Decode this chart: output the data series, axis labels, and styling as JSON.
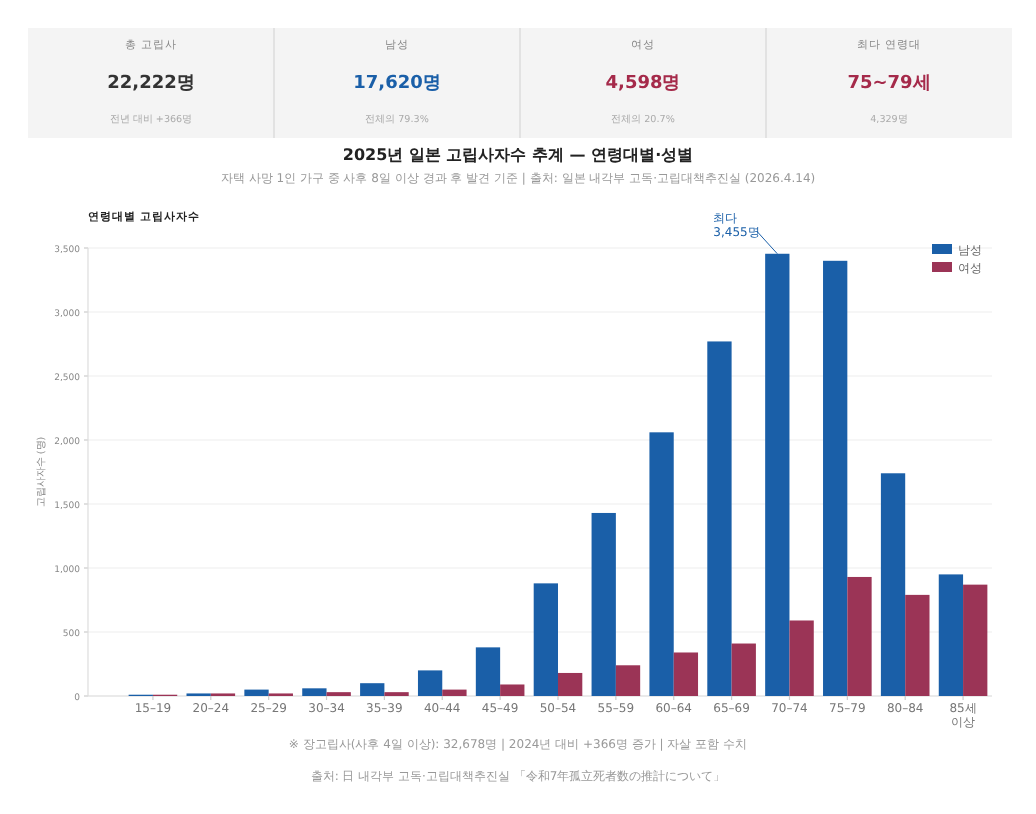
{
  "chart_data": [
    {
      "type": "other",
      "annotations": [
        "총 고립사",
        "22,222명",
        "전년 대비 +366명",
        "남성",
        "17,620명",
        "전체의 79.3%",
        "여성",
        "4,598명",
        "전체의 20.7%",
        "최다 연령대",
        "75~79세",
        "4,329명"
      ],
      "colors": [
        "#333333",
        "#1a5fa8",
        "#a52a4a",
        "#a52a4a"
      ]
    },
    {
      "type": "bar",
      "title": "2025년 일본 고립사자수 추계 — 연령대별·성별",
      "subtitle": "자택 사망 1인 가구 중 사후 8일 이상 경과 후 발견 기준 | 출처: 일본 내각부 고독·고립대책추진실 (2026.4.14)",
      "ylabel": "고립사자수 (명)",
      "categories": [
        "15–19",
        "20–24",
        "25–29",
        "30–34",
        "35–39",
        "40–44",
        "45–49",
        "50–54",
        "55–59",
        "60–64",
        "65–69",
        "70–74",
        "75–79",
        "80–84",
        "85세 이상"
      ],
      "series": [
        {
          "name": "남성",
          "color": "#1a5fa8",
          "values": [
            10,
            20,
            50,
            60,
            100,
            200,
            380,
            880,
            1430,
            2060,
            2770,
            3455,
            3400,
            1740,
            950
          ]
        },
        {
          "name": "여성",
          "color": "#9b3456",
          "values": [
            10,
            20,
            20,
            30,
            30,
            50,
            90,
            180,
            240,
            340,
            410,
            590,
            930,
            790,
            870
          ]
        }
      ],
      "ylim": [
        0,
        3500
      ],
      "yticks": [
        0,
        {
          "value": 500,
          "label": "500"
        },
        {
          "value": 1000,
          "label": "1,000"
        },
        {
          "value": 1500,
          "label": "1,500"
        },
        {
          "value": 2000,
          "label": "2,000"
        },
        {
          "value": 2500,
          "label": "2,500"
        },
        {
          "value": 3000,
          "label": "3,000"
        },
        {
          "value": 3500,
          "label": "3,500"
        }
      ],
      "grid": "y",
      "legend": "top right",
      "annotations": [
        "연령대별 고립사자수",
        {
          "text": "최다\n3,455명",
          "x": "70–74",
          "y": 3455
        },
        "※ 장고립사(사후 4일 이상): 32,678명 | 2024년 대비 +366명 증가 | 자살 포함 수치",
        "출처: 日 내각부 고독·고립대책추진실 「令和7年孤立死者数の推計について」"
      ]
    }
  ]
}
